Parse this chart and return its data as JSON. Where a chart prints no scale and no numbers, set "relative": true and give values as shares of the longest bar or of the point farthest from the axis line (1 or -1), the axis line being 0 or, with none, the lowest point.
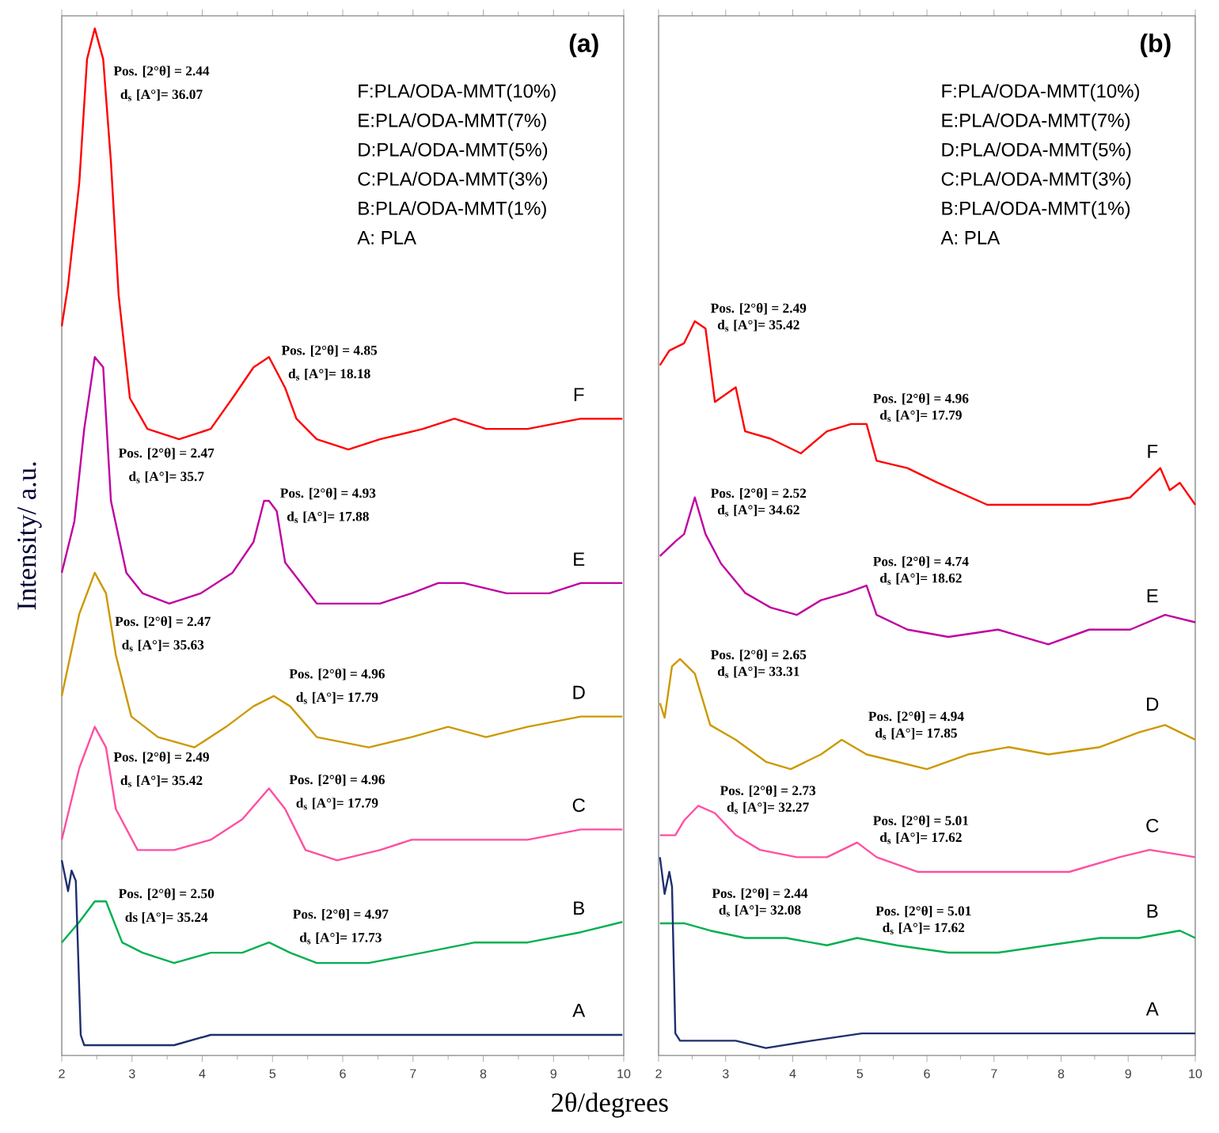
{
  "chart_data": [
    {
      "type": "line",
      "title": "(a)",
      "xlabel": "2θ/degrees",
      "ylabel": "Intensity/ a.u.",
      "relative": true,
      "tick_labels": "x",
      "xlim": [
        2,
        10
      ],
      "xticks": [
        2,
        3,
        4,
        5,
        6,
        7,
        8,
        9,
        10
      ],
      "series": [
        {
          "name": "F",
          "color": "#ff0000",
          "x": [
            2.0,
            2.09,
            2.25,
            2.36,
            2.47,
            2.59,
            2.7,
            2.81,
            2.97,
            3.22,
            3.67,
            4.12,
            4.43,
            4.73,
            4.95,
            5.18,
            5.34,
            5.63,
            6.08,
            6.53,
            7.14,
            7.59,
            8.04,
            8.63,
            9.39,
            9.98
          ],
          "values": [
            0.71,
            0.75,
            0.85,
            0.97,
            1.0,
            0.97,
            0.87,
            0.74,
            0.64,
            0.61,
            0.6,
            0.61,
            0.64,
            0.67,
            0.68,
            0.65,
            0.62,
            0.6,
            0.59,
            0.6,
            0.61,
            0.62,
            0.61,
            0.61,
            0.62,
            0.62
          ]
        },
        {
          "name": "E",
          "color": "#c000a0",
          "x": [
            2.0,
            2.18,
            2.32,
            2.47,
            2.59,
            2.7,
            2.92,
            3.15,
            3.53,
            3.98,
            4.43,
            4.73,
            4.88,
            4.95,
            5.06,
            5.18,
            5.63,
            6.08,
            6.53,
            6.98,
            7.36,
            7.72,
            8.33,
            8.94,
            9.39,
            9.98
          ],
          "values": [
            0.47,
            0.52,
            0.61,
            0.68,
            0.67,
            0.54,
            0.47,
            0.45,
            0.44,
            0.45,
            0.47,
            0.5,
            0.54,
            0.54,
            0.53,
            0.48,
            0.44,
            0.44,
            0.44,
            0.45,
            0.46,
            0.46,
            0.45,
            0.45,
            0.46,
            0.46
          ]
        },
        {
          "name": "D",
          "color": "#cc9900",
          "x": [
            2.0,
            2.25,
            2.47,
            2.63,
            2.77,
            2.99,
            3.37,
            3.89,
            4.34,
            4.73,
            5.02,
            5.25,
            5.63,
            6.37,
            6.98,
            7.5,
            8.04,
            8.63,
            9.39,
            9.98
          ],
          "values": [
            0.35,
            0.43,
            0.47,
            0.45,
            0.39,
            0.33,
            0.31,
            0.3,
            0.32,
            0.34,
            0.35,
            0.34,
            0.31,
            0.3,
            0.31,
            0.32,
            0.31,
            0.32,
            0.33,
            0.33
          ]
        },
        {
          "name": "C",
          "color": "#ff4fa0",
          "x": [
            2.0,
            2.25,
            2.47,
            2.63,
            2.77,
            3.08,
            3.6,
            4.12,
            4.57,
            4.95,
            5.18,
            5.47,
            5.92,
            6.53,
            6.98,
            7.36,
            7.88,
            8.63,
            9.39,
            9.98
          ],
          "values": [
            0.21,
            0.28,
            0.32,
            0.3,
            0.24,
            0.2,
            0.2,
            0.21,
            0.23,
            0.26,
            0.24,
            0.2,
            0.19,
            0.2,
            0.21,
            0.21,
            0.21,
            0.21,
            0.22,
            0.22
          ]
        },
        {
          "name": "B",
          "color": "#00b050",
          "x": [
            2.0,
            2.25,
            2.47,
            2.63,
            2.86,
            3.15,
            3.6,
            4.12,
            4.57,
            4.95,
            5.25,
            5.63,
            6.37,
            7.14,
            7.88,
            8.63,
            9.39,
            9.98
          ],
          "values": [
            0.11,
            0.13,
            0.15,
            0.15,
            0.11,
            0.1,
            0.09,
            0.1,
            0.1,
            0.11,
            0.1,
            0.09,
            0.09,
            0.1,
            0.11,
            0.11,
            0.12,
            0.13
          ]
        },
        {
          "name": "A",
          "color": "#1f2f6e",
          "x": [
            2.0,
            2.09,
            2.14,
            2.2,
            2.27,
            2.32,
            2.99,
            3.6,
            4.12,
            4.88,
            5.79,
            7.14,
            8.63,
            9.98
          ],
          "values": [
            0.19,
            0.16,
            0.18,
            0.17,
            0.02,
            0.01,
            0.01,
            0.01,
            0.02,
            0.02,
            0.02,
            0.02,
            0.02,
            0.02
          ]
        }
      ],
      "annotations": [
        "F:PLA/ODA-MMT(10%)",
        "E:PLA/ODA-MMT(7%)",
        "D:PLA/ODA-MMT(5%)",
        "C:PLA/ODA-MMT(3%)",
        "B:PLA/ODA-MMT(1%)",
        "A: PLA",
        "Pos. [2°θ] = 2.44",
        "d$_{s}$ [A°]= 36.07",
        "Pos. [2°θ] = 4.85",
        "d$_{s}$ [A°]= 18.18",
        "Pos. [2°θ] = 2.47",
        "d$_{s}$ [A°]= 35.7",
        "Pos. [2°θ] = 4.93",
        "d$_{s}$ [A°]= 17.88",
        "Pos. [2°θ] = 2.47",
        "d$_{s}$ [A°]= 35.63",
        "Pos. [2°θ] = 4.96",
        "d$_{s}$ [A°]= 17.79",
        "Pos. [2°θ] = 2.49",
        "d$_{s}$ [A°]= 35.42",
        "Pos. [2°θ] = 4.96",
        "d$_{s}$ [A°]= 17.79",
        "Pos. [2°θ] = 2.50",
        "ds [A°]= 35.24",
        "Pos. [2°θ] = 4.97",
        "d$_{s}$ [A°]= 17.73"
      ]
    },
    {
      "type": "line",
      "title": "(b)",
      "relative": true,
      "tick_labels": "x",
      "xlim": [
        2,
        10
      ],
      "xticks": [
        2,
        3,
        4,
        5,
        6,
        7,
        8,
        9,
        10
      ],
      "series": [
        {
          "name": "F",
          "color": "#ff0000",
          "x": [
            2.02,
            2.16,
            2.38,
            2.54,
            2.7,
            2.84,
            3.15,
            3.29,
            3.67,
            4.12,
            4.51,
            4.87,
            5.1,
            5.25,
            5.71,
            6.16,
            6.9,
            7.67,
            8.42,
            9.03,
            9.48,
            9.62,
            9.77,
            10.0
          ],
          "values": [
            0.94,
            0.96,
            0.97,
            1.0,
            0.99,
            0.89,
            0.91,
            0.85,
            0.84,
            0.82,
            0.85,
            0.86,
            0.86,
            0.81,
            0.8,
            0.78,
            0.75,
            0.75,
            0.75,
            0.76,
            0.8,
            0.77,
            0.78,
            0.75
          ]
        },
        {
          "name": "E",
          "color": "#c000a0",
          "x": [
            2.02,
            2.25,
            2.38,
            2.54,
            2.7,
            2.93,
            3.29,
            3.67,
            4.06,
            4.42,
            4.8,
            5.1,
            5.25,
            5.71,
            6.32,
            7.06,
            7.81,
            8.42,
            9.03,
            9.55,
            10.0
          ],
          "values": [
            0.68,
            0.7,
            0.71,
            0.76,
            0.71,
            0.67,
            0.63,
            0.61,
            0.6,
            0.62,
            0.63,
            0.64,
            0.6,
            0.58,
            0.57,
            0.58,
            0.56,
            0.58,
            0.58,
            0.6,
            0.59
          ]
        },
        {
          "name": "D",
          "color": "#cc9900",
          "x": [
            2.02,
            2.09,
            2.2,
            2.32,
            2.54,
            2.77,
            3.15,
            3.6,
            3.97,
            4.42,
            4.73,
            5.1,
            5.55,
            6.0,
            6.61,
            7.22,
            7.81,
            8.58,
            9.16,
            9.55,
            10.0
          ],
          "values": [
            0.48,
            0.46,
            0.53,
            0.54,
            0.52,
            0.45,
            0.43,
            0.4,
            0.39,
            0.41,
            0.43,
            0.41,
            0.4,
            0.39,
            0.41,
            0.42,
            0.41,
            0.42,
            0.44,
            0.45,
            0.43
          ]
        },
        {
          "name": "C",
          "color": "#ff4fa0",
          "x": [
            2.02,
            2.25,
            2.38,
            2.59,
            2.84,
            3.15,
            3.51,
            4.06,
            4.51,
            4.96,
            5.25,
            5.86,
            6.61,
            7.36,
            8.12,
            8.87,
            9.32,
            10.0
          ],
          "values": [
            0.3,
            0.3,
            0.32,
            0.34,
            0.33,
            0.3,
            0.28,
            0.27,
            0.27,
            0.29,
            0.27,
            0.25,
            0.25,
            0.25,
            0.25,
            0.27,
            0.28,
            0.27
          ]
        },
        {
          "name": "B",
          "color": "#00b050",
          "x": [
            2.02,
            2.38,
            2.77,
            3.29,
            3.9,
            4.51,
            4.96,
            5.55,
            6.32,
            7.06,
            7.81,
            8.58,
            9.16,
            9.77,
            10.0
          ],
          "values": [
            0.18,
            0.18,
            0.17,
            0.16,
            0.16,
            0.15,
            0.16,
            0.15,
            0.14,
            0.14,
            0.15,
            0.16,
            0.16,
            0.17,
            0.16
          ]
        },
        {
          "name": "A",
          "color": "#1f2f6e",
          "x": [
            2.02,
            2.09,
            2.16,
            2.2,
            2.25,
            2.32,
            3.15,
            3.6,
            4.28,
            5.03,
            5.77,
            6.9,
            8.42,
            10.0
          ],
          "values": [
            0.27,
            0.22,
            0.25,
            0.23,
            0.03,
            0.02,
            0.02,
            0.01,
            0.02,
            0.03,
            0.03,
            0.03,
            0.03,
            0.03
          ]
        }
      ],
      "annotations": [
        "F:PLA/ODA-MMT(10%)",
        "E:PLA/ODA-MMT(7%)",
        "D:PLA/ODA-MMT(5%)",
        "C:PLA/ODA-MMT(3%)",
        "B:PLA/ODA-MMT(1%)",
        "A: PLA",
        "Pos. [2°θ] = 2.49",
        "d$_{s}$ [A°]= 35.42",
        "Pos. [2°θ] = 4.96",
        "d$_{s}$ [A°]= 17.79",
        "Pos. [2°θ] = 2.52",
        "d$_{s}$ [A°]= 34.62",
        "Pos. [2°θ] = 4.74",
        "d$_{s}$ [A°]= 18.62",
        "Pos. [2°θ] = 2.65",
        "d$_{s}$ [A°]= 33.31",
        "Pos. [2°θ] = 4.94",
        "d$_{s}$ [A°]= 17.85",
        "Pos. [2°θ] = 2.73",
        "d$_{s}$ [A°]= 32.27",
        "Pos. [2°θ] = 5.01",
        "d$_{s}$ [A°]= 17.62",
        "Pos. [2°θ] = 2.44",
        "d$_{s}$ [A°]= 32.08",
        "Pos. [2°θ] = 5.01",
        "d$_{s}$ [A°]= 17.62"
      ]
    }
  ]
}
